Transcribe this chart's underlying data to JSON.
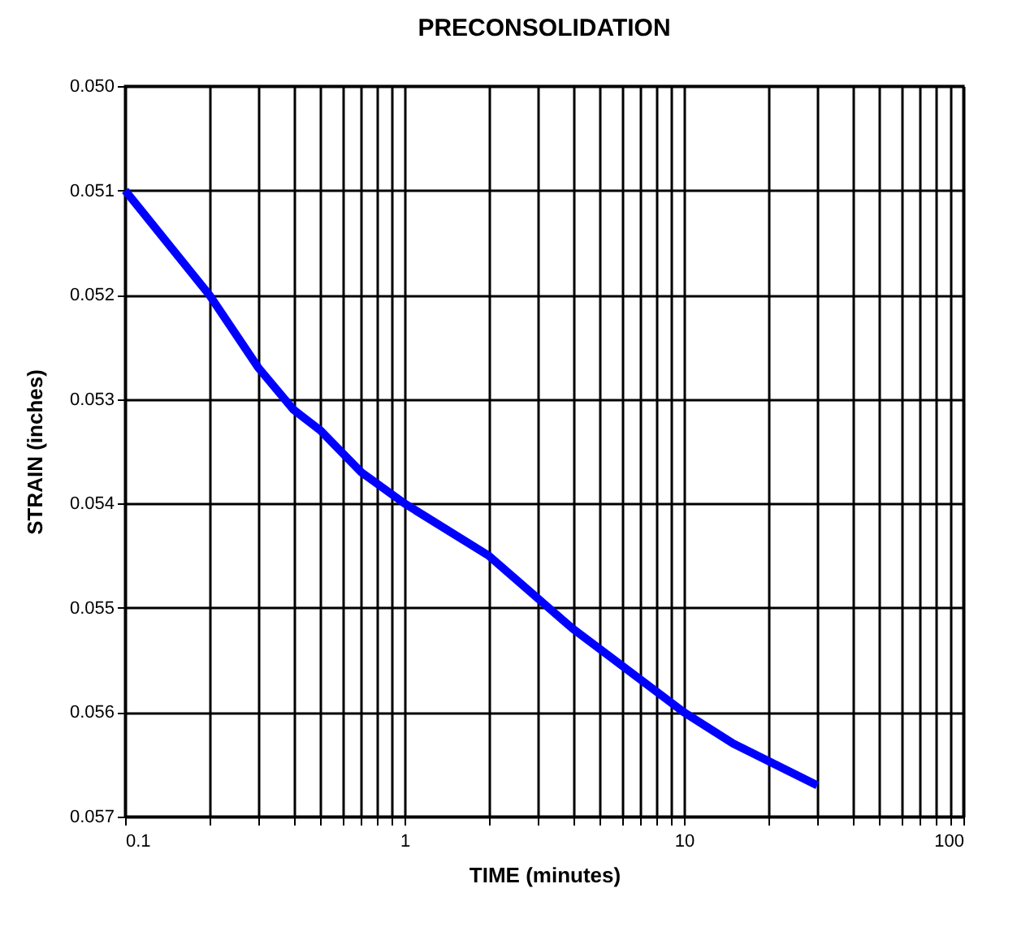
{
  "chart_data": {
    "type": "line",
    "title": "PRECONSOLIDATION",
    "xlabel": "TIME (minutes)",
    "ylabel": "STRAIN  (inches)",
    "log": "x",
    "grid": true,
    "marker": "none",
    "line_style": "solid",
    "xlim": [
      0.1,
      100
    ],
    "xticks": [
      0.1,
      {
        "value": 0.2,
        "label": null
      },
      {
        "value": 0.3,
        "label": null
      },
      {
        "value": 0.4,
        "label": null
      },
      {
        "value": 0.5,
        "label": null
      },
      {
        "value": 0.6,
        "label": null
      },
      {
        "value": 0.7,
        "label": null
      },
      {
        "value": 0.8,
        "label": null
      },
      {
        "value": 0.9,
        "label": null
      },
      1,
      {
        "value": 2,
        "label": null
      },
      {
        "value": 3,
        "label": null
      },
      {
        "value": 4,
        "label": null
      },
      {
        "value": 5,
        "label": null
      },
      {
        "value": 6,
        "label": null
      },
      {
        "value": 7,
        "label": null
      },
      {
        "value": 8,
        "label": null
      },
      {
        "value": 9,
        "label": null
      },
      10,
      {
        "value": 20,
        "label": null
      },
      {
        "value": 30,
        "label": null
      },
      {
        "value": 40,
        "label": null
      },
      {
        "value": 50,
        "label": null
      },
      {
        "value": 60,
        "label": null
      },
      {
        "value": 70,
        "label": null
      },
      {
        "value": 80,
        "label": null
      },
      {
        "value": 90,
        "label": null
      },
      100
    ],
    "ylim": [
      0.057,
      0.05
    ],
    "yticks": [
      {
        "value": 0.05,
        "label": "0.050"
      },
      {
        "value": 0.051,
        "label": "0.051"
      },
      {
        "value": 0.052,
        "label": "0.052"
      },
      {
        "value": 0.053,
        "label": "0.053"
      },
      {
        "value": 0.054,
        "label": "0.054"
      },
      {
        "value": 0.055,
        "label": "0.055"
      },
      {
        "value": 0.056,
        "label": "0.056"
      },
      {
        "value": 0.057,
        "label": "0.057"
      }
    ],
    "x": [
      0.1,
      0.2,
      0.3,
      0.4,
      0.5,
      0.7,
      1,
      2,
      4,
      10,
      15,
      30
    ],
    "series": [
      {
        "color": "#0000ff",
        "values": [
          0.051,
          0.052,
          0.0527,
          0.0531,
          0.0533,
          0.0537,
          0.054,
          0.0545,
          0.0552,
          0.056,
          0.0563,
          0.0567
        ]
      }
    ]
  }
}
